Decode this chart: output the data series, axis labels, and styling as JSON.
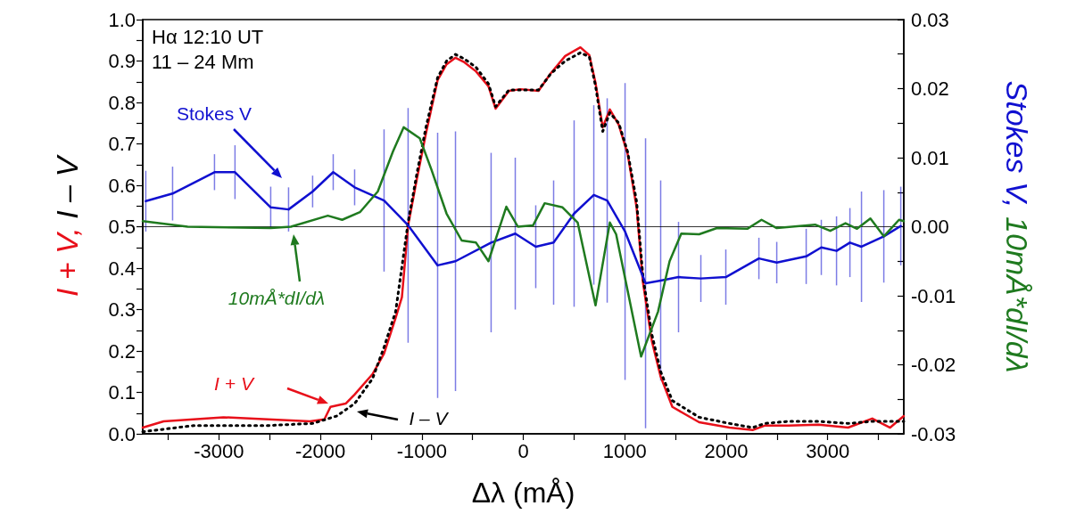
{
  "chart_data": {
    "type": "line",
    "xlabel": "Δλ (mÅ)",
    "ylabel": "I + V, I – V",
    "y2label": "Stokes V, 10mÅ*dI/dλ",
    "annotations": [
      "Hα 12:10 UT",
      "11 – 24 Mm"
    ],
    "xlim": [
      -3750,
      3750
    ],
    "xticks": [
      {
        "value": -3500,
        "label": null
      },
      -3000,
      {
        "value": -2500,
        "label": null
      },
      -2000,
      {
        "value": -1500,
        "label": null
      },
      -1000,
      {
        "value": -500,
        "label": null
      },
      0,
      {
        "value": 500,
        "label": null
      },
      1000,
      {
        "value": 1500,
        "label": null
      },
      2000,
      {
        "value": 2500,
        "label": null
      },
      3000,
      {
        "value": 3500,
        "label": null
      }
    ],
    "ylim": [
      0,
      1
    ],
    "yticks": [
      {
        "value": 0,
        "label": "0.0"
      },
      {
        "value": 0.05,
        "label": null
      },
      0.1,
      {
        "value": 0.15,
        "label": null
      },
      0.2,
      {
        "value": 0.25,
        "label": null
      },
      0.3,
      {
        "value": 0.35,
        "label": null
      },
      0.4,
      {
        "value": 0.45,
        "label": null
      },
      0.5,
      {
        "value": 0.55,
        "label": null
      },
      0.6,
      {
        "value": 0.65,
        "label": null
      },
      0.7,
      {
        "value": 0.75,
        "label": null
      },
      0.8,
      {
        "value": 0.85,
        "label": null
      },
      0.9,
      {
        "value": 0.95,
        "label": null
      },
      {
        "value": 1,
        "label": "1.0"
      }
    ],
    "y2lim": [
      -0.03,
      0.03
    ],
    "y2ticks": [
      -0.03,
      {
        "value": -0.025,
        "label": null
      },
      -0.02,
      {
        "value": -0.015,
        "label": null
      },
      -0.01,
      {
        "value": -0.005,
        "label": null
      },
      {
        "value": 0,
        "label": "0.00"
      },
      {
        "value": 0.005,
        "label": null
      },
      0.01,
      {
        "value": 0.015,
        "label": null
      },
      0.02,
      {
        "value": 0.025,
        "label": null
      },
      0.03
    ],
    "marker": "none",
    "ref_lines": [
      {
        "axis": "y2",
        "value": 0,
        "color": "#000000"
      }
    ],
    "series": [
      {
        "name": "I + V",
        "color": "#e8101a",
        "line_style": "solid",
        "x": [
          -3750,
          -3544,
          -2955,
          -2515,
          -2102,
          -1960,
          -1900,
          -1750,
          -1662,
          -1486,
          -1372,
          -1258,
          -1196,
          -1135,
          -1047,
          -959,
          -844,
          -756,
          -668,
          -580,
          -466,
          -343,
          -273,
          -141,
          -26,
          150,
          273,
          413,
          563,
          651,
          712,
          783,
          853,
          941,
          1029,
          1117,
          1179,
          1267,
          1354,
          1469,
          1733,
          2032,
          2260,
          2383,
          2612,
          2911,
          3201,
          3439,
          3615,
          3750
        ],
        "values": [
          0.015,
          0.03,
          0.04,
          0.035,
          0.03,
          0.035,
          0.065,
          0.073,
          0.095,
          0.144,
          0.194,
          0.28,
          0.33,
          0.503,
          0.617,
          0.725,
          0.854,
          0.892,
          0.908,
          0.897,
          0.875,
          0.839,
          0.785,
          0.828,
          0.832,
          0.828,
          0.871,
          0.912,
          0.933,
          0.914,
          0.847,
          0.74,
          0.783,
          0.746,
          0.675,
          0.546,
          0.366,
          0.224,
          0.138,
          0.065,
          0.028,
          0.015,
          0.009,
          0.02,
          0.02,
          0.022,
          0.015,
          0.037,
          0.015,
          0.043
        ]
      },
      {
        "name": "I – V",
        "color": "#000000",
        "line_style": "dotted",
        "x": [
          -3750,
          -3245,
          -2515,
          -2076,
          -1838,
          -1662,
          -1486,
          -1372,
          -1258,
          -1135,
          -1047,
          -959,
          -844,
          -756,
          -668,
          -580,
          -466,
          -343,
          -273,
          -141,
          150,
          273,
          413,
          563,
          651,
          712,
          783,
          853,
          941,
          1029,
          1117,
          1179,
          1267,
          1354,
          1469,
          1733,
          2032,
          2260,
          2383,
          2612,
          2911,
          3201,
          3439,
          3750
        ],
        "values": [
          0.005,
          0.02,
          0.02,
          0.025,
          0.043,
          0.073,
          0.133,
          0.209,
          0.295,
          0.51,
          0.63,
          0.74,
          0.86,
          0.9,
          0.916,
          0.905,
          0.885,
          0.845,
          0.79,
          0.83,
          0.83,
          0.87,
          0.9,
          0.92,
          0.91,
          0.84,
          0.73,
          0.775,
          0.75,
          0.68,
          0.56,
          0.38,
          0.24,
          0.15,
          0.08,
          0.04,
          0.025,
          0.015,
          0.025,
          0.03,
          0.03,
          0.025,
          0.03,
          0.03
        ]
      },
      {
        "name": "Stokes V",
        "color": "#1010d0",
        "axis": "y2",
        "line_style": "solid",
        "x": [
          -3720,
          -3456,
          -3043,
          -2841,
          -2489,
          -2313,
          -2076,
          -1873,
          -1662,
          -1372,
          -1135,
          -844,
          -668,
          -317,
          -79,
          123,
          299,
          501,
          695,
          827,
          1003,
          1205,
          1354,
          1530,
          1750,
          1996,
          2322,
          2498,
          2788,
          2937,
          3087,
          3219,
          3333,
          3553,
          3720
        ],
        "values": [
          0.0037,
          0.0048,
          0.0079,
          0.0079,
          0.0028,
          0.0025,
          0.0051,
          0.0079,
          0.0057,
          0.0038,
          0.0002,
          -0.0056,
          -0.005,
          -0.0023,
          -0.001,
          -0.0029,
          -0.0023,
          0.0019,
          0.0046,
          0.0038,
          -0.0007,
          -0.0082,
          -0.0078,
          -0.0073,
          -0.0075,
          -0.0073,
          -0.0046,
          -0.0052,
          -0.0043,
          -0.003,
          -0.0035,
          -0.0023,
          -0.0029,
          -0.0014,
          0.0001
        ],
        "errors": [
          0.0044,
          0.0039,
          0.0026,
          0.0039,
          0.003,
          0.0032,
          0.0023,
          0.0026,
          0.0026,
          0.0103,
          0.017,
          0.0192,
          0.0188,
          0.013,
          0.011,
          0.006,
          0.009,
          0.0135,
          0.013,
          0.0148,
          0.0215,
          0.021,
          0.0145,
          0.008,
          0.0034,
          0.004,
          0.003,
          0.003,
          0.004,
          0.004,
          0.005,
          0.005,
          0.008,
          0.0067,
          0.0057
        ]
      },
      {
        "name": "10mÅ*dI/dλ",
        "color": "#1f7a1f",
        "axis": "y2",
        "line_style": "solid",
        "x": [
          -3750,
          -3307,
          -2489,
          -2290,
          -1926,
          -1785,
          -1610,
          -1434,
          -1284,
          -1179,
          -1020,
          -906,
          -756,
          -607,
          -466,
          -343,
          -167,
          -53,
          97,
          211,
          387,
          536,
          712,
          853,
          915,
          1161,
          1328,
          1442,
          1557,
          1733,
          1909,
          2208,
          2348,
          2498,
          2876,
          3025,
          3175,
          3289,
          3421,
          3553,
          3703,
          3750
        ],
        "values": [
          0.0008,
          0,
          -0.0002,
          0,
          0.0016,
          0.001,
          0.0021,
          0.0051,
          0.0109,
          0.0144,
          0.0128,
          0.0083,
          0.0019,
          -0.002,
          -0.0023,
          -0.005,
          0.0029,
          0,
          0.0002,
          0.0034,
          0.0028,
          0.0006,
          -0.0114,
          0.0006,
          -0.0011,
          -0.0188,
          -0.0123,
          -0.005,
          -0.001,
          -0.0011,
          -0.0002,
          -0.0003,
          0.001,
          -0.0002,
          0.0003,
          -0.0006,
          0.0005,
          -0.0003,
          0.0012,
          -0.0014,
          0.001,
          0.0008
        ]
      }
    ]
  }
}
